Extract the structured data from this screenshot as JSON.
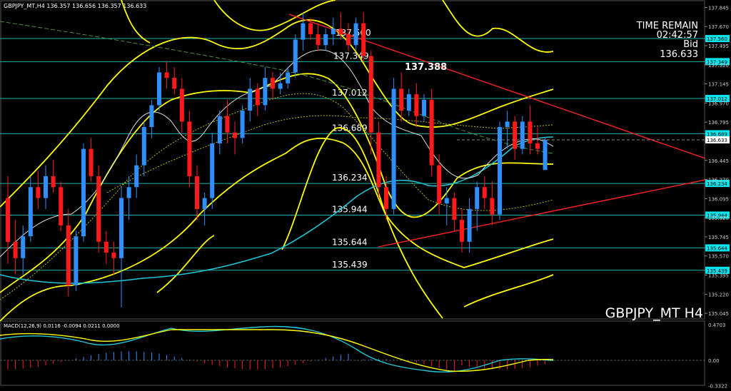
{
  "header": {
    "symbol_line": "GBPJPY_MT,H4  136.357 136.656 136.357 136.633"
  },
  "info": {
    "time_remain_label": "TIME REMAIN",
    "time_remain_value": "02:42:57",
    "bid_label": "Bid",
    "bid_value": "136.633"
  },
  "peak_label": "137.388",
  "watermark": "GBPJPY_MT H4",
  "macd": {
    "label": "MACD(12,26,9) 0.0116 -0.0094 0.0211 0.0000",
    "axis_ticks": [
      "0.4703",
      "0.00",
      "-0.3322"
    ]
  },
  "price_axis": {
    "ticks": [
      "137.845",
      "137.670",
      "137.495",
      "137.320",
      "137.145",
      "136.970",
      "136.795",
      "136.620",
      "136.445",
      "136.270",
      "136.095",
      "135.920",
      "135.745",
      "135.570",
      "135.395",
      "135.220",
      "135.045"
    ],
    "current": "136.633"
  },
  "levels": [
    {
      "label": "137.560",
      "tag": "137.560",
      "price": 137.56
    },
    {
      "label": "137.349",
      "tag": "137.349",
      "price": 137.349
    },
    {
      "label": "137.012",
      "tag": "137.012",
      "price": 137.012
    },
    {
      "label": "136.689",
      "tag": "136.689",
      "price": 136.689
    },
    {
      "label": "136.234",
      "tag": "136.234",
      "price": 136.234
    },
    {
      "label": "135.944",
      "tag": "135.944",
      "price": 135.944
    },
    {
      "label": "135.644",
      "tag": "135.644",
      "price": 135.644
    },
    {
      "label": "135.439",
      "tag": "135.439",
      "price": 135.439
    }
  ],
  "colors": {
    "background": "#000000",
    "bull_candle": "#2f8fff",
    "bear_candle": "#ff1a1a",
    "level_line": "#20b2aa",
    "level_tag": "#00e5ee",
    "bollinger": "#ffff00",
    "ma_cyan": "#1ec8d8",
    "ma_white": "#e0e0e0",
    "trendline": "#ff2020",
    "macd_main": "#20c8d8",
    "macd_signal": "#ffff00"
  },
  "chart_data": {
    "type": "candlestick",
    "timeframe": "H4",
    "ohlc_last": {
      "open": 136.357,
      "high": 136.656,
      "low": 136.357,
      "close": 136.633
    },
    "price_range": [
      135.0,
      137.9
    ],
    "candles": [
      [
        136.1,
        136.3,
        135.5,
        135.7
      ],
      [
        135.7,
        135.9,
        135.4,
        135.55
      ],
      [
        135.55,
        135.85,
        135.4,
        135.75
      ],
      [
        135.75,
        136.3,
        135.7,
        136.2
      ],
      [
        136.2,
        136.35,
        136.0,
        136.1
      ],
      [
        136.1,
        136.4,
        136.0,
        136.3
      ],
      [
        136.3,
        136.45,
        136.15,
        136.2
      ],
      [
        136.2,
        136.25,
        135.8,
        135.85
      ],
      [
        135.85,
        136.0,
        135.2,
        135.3
      ],
      [
        135.3,
        135.8,
        135.25,
        135.75
      ],
      [
        135.75,
        136.6,
        135.7,
        136.55
      ],
      [
        136.55,
        136.65,
        136.25,
        136.3
      ],
      [
        136.3,
        136.4,
        135.6,
        135.7
      ],
      [
        135.7,
        135.8,
        135.5,
        135.6
      ],
      [
        135.6,
        135.7,
        135.4,
        135.55
      ],
      [
        135.55,
        136.2,
        135.1,
        136.1
      ],
      [
        136.1,
        136.3,
        135.9,
        136.2
      ],
      [
        136.2,
        136.5,
        136.1,
        136.4
      ],
      [
        136.4,
        136.8,
        136.3,
        136.75
      ],
      [
        136.75,
        137.0,
        136.65,
        136.95
      ],
      [
        136.95,
        137.3,
        136.9,
        137.25
      ],
      [
        137.25,
        137.35,
        137.1,
        137.2
      ],
      [
        137.2,
        137.3,
        137.05,
        137.1
      ],
      [
        137.1,
        137.2,
        136.7,
        136.8
      ],
      [
        136.8,
        136.9,
        136.2,
        136.3
      ],
      [
        136.3,
        136.4,
        135.9,
        136.0
      ],
      [
        136.0,
        136.15,
        135.85,
        136.1
      ],
      [
        136.1,
        136.7,
        136.0,
        136.6
      ],
      [
        136.6,
        136.9,
        136.5,
        136.85
      ],
      [
        136.85,
        137.0,
        136.6,
        136.7
      ],
      [
        136.7,
        136.8,
        136.5,
        136.65
      ],
      [
        136.65,
        136.95,
        136.6,
        136.9
      ],
      [
        136.9,
        137.2,
        136.8,
        137.1
      ],
      [
        137.1,
        137.15,
        136.85,
        136.95
      ],
      [
        136.95,
        137.3,
        136.9,
        137.2
      ],
      [
        137.2,
        137.25,
        137.0,
        137.1
      ],
      [
        137.1,
        137.25,
        137.05,
        137.15
      ],
      [
        137.15,
        137.3,
        137.1,
        137.25
      ],
      [
        137.25,
        137.6,
        137.2,
        137.55
      ],
      [
        137.55,
        137.8,
        137.45,
        137.7
      ],
      [
        137.7,
        137.75,
        137.55,
        137.6
      ],
      [
        137.6,
        137.7,
        137.45,
        137.5
      ],
      [
        137.5,
        137.65,
        137.45,
        137.6
      ],
      [
        137.6,
        137.75,
        137.5,
        137.65
      ],
      [
        137.65,
        137.8,
        137.55,
        137.6
      ],
      [
        137.6,
        137.7,
        137.45,
        137.5
      ],
      [
        137.5,
        137.75,
        137.45,
        137.7
      ],
      [
        137.7,
        137.8,
        137.35,
        137.4
      ],
      [
        137.4,
        137.45,
        136.5,
        136.7
      ],
      [
        136.7,
        136.8,
        136.1,
        136.2
      ],
      [
        136.2,
        136.3,
        135.9,
        136.0
      ],
      [
        136.0,
        137.2,
        135.95,
        137.1
      ],
      [
        137.1,
        137.25,
        136.8,
        136.9
      ],
      [
        136.9,
        137.1,
        136.85,
        137.05
      ],
      [
        137.05,
        137.15,
        136.75,
        136.85
      ],
      [
        136.85,
        137.05,
        136.8,
        137.0
      ],
      [
        137.0,
        137.1,
        136.3,
        136.4
      ],
      [
        136.4,
        136.5,
        135.95,
        136.05
      ],
      [
        136.05,
        136.2,
        135.85,
        136.1
      ],
      [
        136.1,
        136.15,
        135.8,
        135.9
      ],
      [
        135.9,
        136.0,
        135.6,
        135.7
      ],
      [
        135.7,
        136.1,
        135.6,
        136.0
      ],
      [
        136.0,
        136.25,
        135.8,
        136.2
      ],
      [
        136.2,
        136.3,
        136.0,
        136.1
      ],
      [
        136.1,
        136.25,
        135.85,
        135.95
      ],
      [
        135.95,
        136.8,
        135.9,
        136.75
      ],
      [
        136.75,
        136.9,
        136.55,
        136.8
      ],
      [
        136.8,
        136.85,
        136.45,
        136.55
      ],
      [
        136.55,
        136.85,
        136.5,
        136.8
      ],
      [
        136.8,
        136.95,
        136.5,
        136.6
      ],
      [
        136.6,
        136.75,
        136.5,
        136.55
      ],
      [
        136.357,
        136.656,
        136.357,
        136.633
      ]
    ]
  }
}
